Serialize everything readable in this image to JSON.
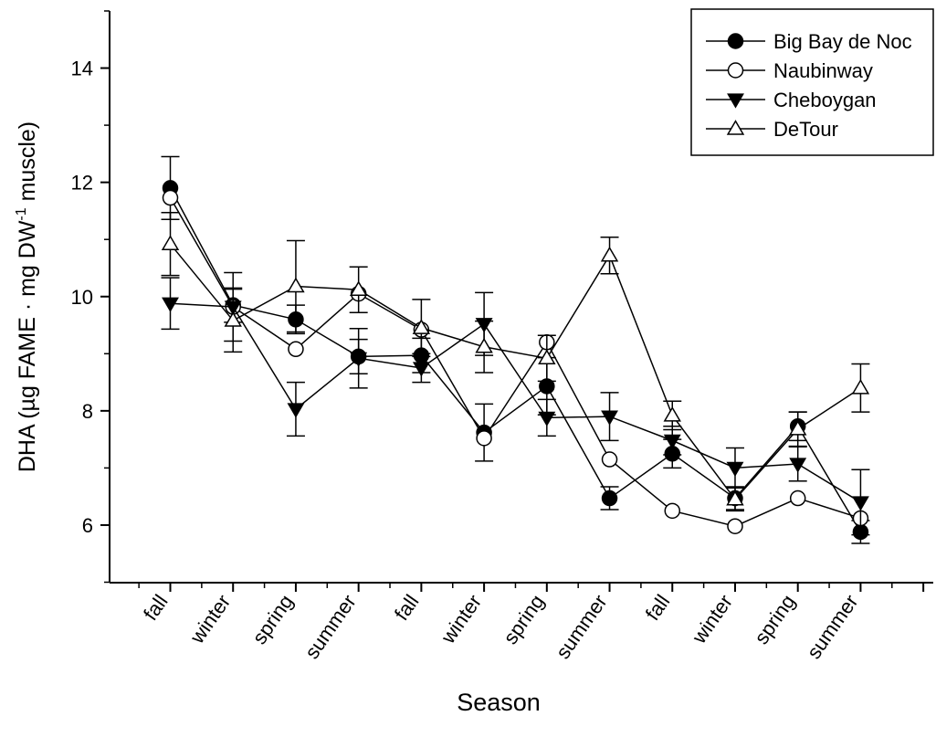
{
  "chart_data": {
    "type": "line",
    "xlabel": "Season",
    "ylabel": "DHA (µg FAME · mg DW",
    "ylabel_sup": "-1",
    "ylabel_end": " muscle)",
    "categories": [
      "fall",
      "winter",
      "spring",
      "summer",
      "fall",
      "winter",
      "spring",
      "summer",
      "fall",
      "winter",
      "spring",
      "summer"
    ],
    "ylim": [
      5,
      15
    ],
    "yticks": [
      6,
      8,
      10,
      12,
      14
    ],
    "legend_position": "top-right",
    "series": [
      {
        "name": "Big Bay de Noc",
        "marker": "circle-filled",
        "values": [
          11.9,
          9.85,
          9.6,
          8.95,
          8.97,
          7.62,
          8.43,
          6.47,
          7.25,
          6.47,
          7.73,
          5.88
        ],
        "errors": [
          0.55,
          0.3,
          0.25,
          0.3,
          0.3,
          0.5,
          0.5,
          0.2,
          0.25,
          0.2,
          0.25,
          0.2
        ]
      },
      {
        "name": "Naubinway",
        "marker": "circle-open",
        "values": [
          11.73,
          9.82,
          9.08,
          10.05,
          9.42,
          7.52,
          9.2,
          7.15,
          6.25,
          5.98,
          6.47,
          6.12
        ]
      },
      {
        "name": "Cheboygan",
        "marker": "triangle-down-filled",
        "values": [
          9.88,
          9.82,
          8.03,
          8.92,
          8.75,
          9.52,
          7.88,
          7.9,
          7.48,
          7.0,
          7.07,
          6.4
        ],
        "errors": [
          0.45,
          0.6,
          0.47,
          0.52,
          0.25,
          0.55,
          0.32,
          0.42,
          0.25,
          0.35,
          0.3,
          0.57
        ]
      },
      {
        "name": "DeTour",
        "marker": "triangle-up-open",
        "values": [
          10.92,
          9.58,
          10.18,
          10.12,
          9.45,
          9.12,
          8.92,
          10.72,
          7.92,
          6.45,
          7.68,
          8.4
        ],
        "errors": [
          0.55,
          0.55,
          0.8,
          0.4,
          0.5,
          0.45,
          0.4,
          0.32,
          0.25,
          0.2,
          0.3,
          0.42
        ]
      }
    ]
  }
}
